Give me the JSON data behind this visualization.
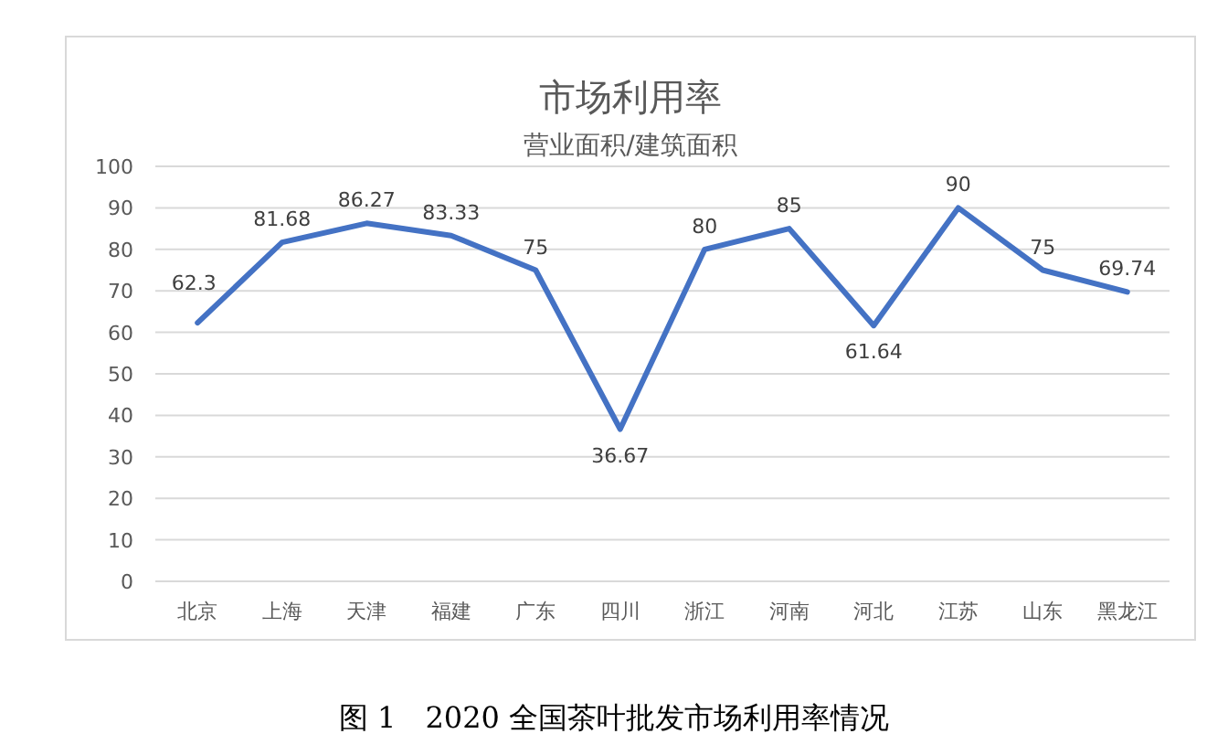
{
  "chart_data": {
    "type": "line",
    "title": "市场利用率",
    "subtitle": "营业面积/建筑面积",
    "categories": [
      "北京",
      "上海",
      "天津",
      "福建",
      "广东",
      "四川",
      "浙江",
      "河南",
      "河北",
      "江苏",
      "山东",
      "黑龙江"
    ],
    "values": [
      62.3,
      81.68,
      86.27,
      83.33,
      75,
      36.67,
      80,
      85,
      61.64,
      90,
      75,
      69.74
    ],
    "color": "#4472c4",
    "ylim": [
      0,
      100
    ],
    "yticks": [
      0,
      10,
      20,
      30,
      40,
      50,
      60,
      70,
      80,
      90,
      100
    ],
    "grid": "y",
    "data_labels": true,
    "marker": "none",
    "line_style": "solid",
    "annotations": [
      "图 1　2020 全国茶叶批发市场利用率情况"
    ]
  }
}
